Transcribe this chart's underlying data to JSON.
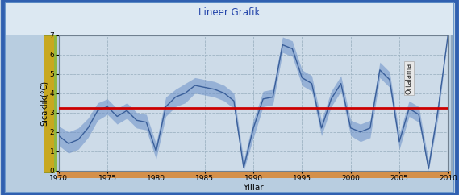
{
  "title": "Lineer Grafik",
  "xlabel": "Yillar",
  "ylabel": "Sıcaklık(°C)",
  "xlim": [
    1970,
    2010
  ],
  "ylim": [
    0,
    7
  ],
  "yticks": [
    0,
    1,
    2,
    3,
    4,
    5,
    6,
    7
  ],
  "xticks": [
    1970,
    1975,
    1980,
    1985,
    1990,
    1995,
    2000,
    2005,
    2010
  ],
  "ortalama": 3.25,
  "ortalama_label": "Ortalama",
  "ortalama_color": "#cc0000",
  "line_color": "#3a5f9a",
  "fill_color": "#6a8fc8",
  "fill_alpha": 0.55,
  "plot_bg": "#cddbe8",
  "outer_bg_top": "#d8e8f4",
  "outer_bg_main": "#b8cde0",
  "title_color": "#2244aa",
  "title_fontsize": 8.5,
  "years": [
    1970,
    1971,
    1972,
    1973,
    1974,
    1975,
    1976,
    1977,
    1978,
    1979,
    1980,
    1981,
    1982,
    1983,
    1984,
    1985,
    1986,
    1987,
    1988,
    1989,
    1990,
    1991,
    1992,
    1993,
    1994,
    1995,
    1996,
    1997,
    1998,
    1999,
    2000,
    2001,
    2002,
    2003,
    2004,
    2005,
    2006,
    2007,
    2008,
    2009,
    2010
  ],
  "values": [
    1.8,
    1.4,
    1.6,
    2.2,
    3.1,
    3.3,
    2.8,
    3.1,
    2.6,
    2.5,
    1.0,
    3.3,
    3.8,
    4.0,
    4.4,
    4.3,
    4.2,
    4.0,
    3.6,
    0.15,
    2.2,
    3.7,
    3.8,
    6.5,
    6.3,
    4.8,
    4.5,
    2.2,
    3.7,
    4.5,
    2.2,
    2.0,
    2.2,
    5.2,
    4.7,
    1.5,
    3.2,
    2.9,
    0.1,
    3.2,
    7.0
  ],
  "upper_band": [
    2.3,
    2.0,
    2.2,
    2.7,
    3.5,
    3.7,
    3.2,
    3.5,
    3.0,
    2.9,
    1.4,
    3.8,
    4.2,
    4.5,
    4.8,
    4.7,
    4.6,
    4.4,
    4.0,
    0.55,
    2.6,
    4.1,
    4.2,
    6.9,
    6.7,
    5.2,
    4.9,
    2.6,
    4.1,
    4.9,
    2.6,
    2.4,
    2.6,
    5.6,
    5.1,
    1.9,
    3.6,
    3.3,
    0.5,
    3.6,
    7.0
  ],
  "lower_band": [
    1.3,
    0.9,
    1.1,
    1.7,
    2.6,
    2.9,
    2.4,
    2.7,
    2.2,
    2.1,
    0.6,
    2.8,
    3.3,
    3.5,
    4.0,
    3.9,
    3.8,
    3.6,
    3.2,
    0.0,
    1.7,
    3.3,
    3.4,
    6.1,
    5.9,
    4.4,
    4.1,
    1.8,
    3.3,
    4.1,
    1.8,
    1.5,
    1.7,
    4.8,
    4.3,
    1.1,
    2.8,
    2.5,
    0.0,
    2.8,
    7.0
  ],
  "gold_strip_color": "#c8a820",
  "green_strip_color": "#90b840",
  "orange_strip_color": "#d4904a",
  "border_outer_color": "#3060b0",
  "border_inner_color": "#6090c8"
}
